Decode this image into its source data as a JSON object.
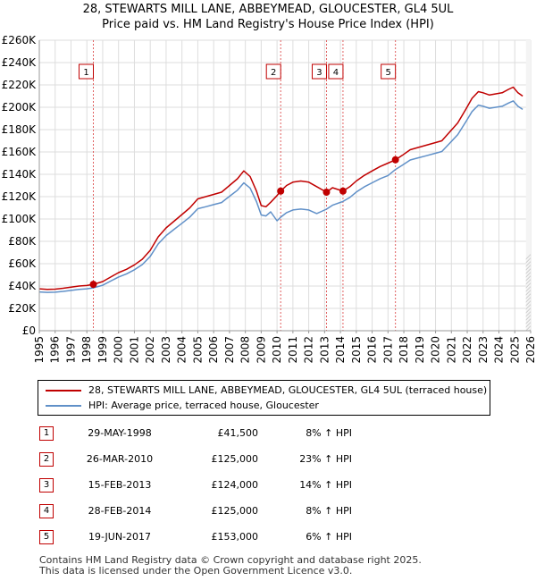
{
  "title_line1": "28, STEWARTS MILL LANE, ABBEYMEAD, GLOUCESTER, GL4 5UL",
  "title_line2": "Price paid vs. HM Land Registry's House Price Index (HPI)",
  "colors": {
    "property": "#c00000",
    "hpi": "#6090c8",
    "grid": "#dddddd",
    "marker_line": "#e06060"
  },
  "chart_data": {
    "type": "line",
    "xlim": [
      1995,
      2026
    ],
    "ylim": [
      0,
      260000
    ],
    "ytick_values": [
      0,
      20000,
      40000,
      60000,
      80000,
      100000,
      120000,
      140000,
      160000,
      180000,
      200000,
      220000,
      240000,
      260000
    ],
    "ytick_labels": [
      "£0",
      "£20K",
      "£40K",
      "£60K",
      "£80K",
      "£100K",
      "£120K",
      "£140K",
      "£160K",
      "£180K",
      "£200K",
      "£220K",
      "£240K",
      "£260K"
    ],
    "xtick_values": [
      1995,
      1996,
      1997,
      1998,
      1999,
      2000,
      2001,
      2002,
      2003,
      2004,
      2005,
      2006,
      2007,
      2008,
      2009,
      2010,
      2011,
      2012,
      2013,
      2014,
      2015,
      2016,
      2017,
      2018,
      2019,
      2020,
      2021,
      2022,
      2023,
      2024,
      2025,
      2026
    ],
    "xtick_labels": [
      "1995",
      "1996",
      "1997",
      "1998",
      "1999",
      "2000",
      "2001",
      "2002",
      "2003",
      "2004",
      "2005",
      "2006",
      "2007",
      "2008",
      "2009",
      "2010",
      "2011",
      "2012",
      "2013",
      "2014",
      "2015",
      "2016",
      "2017",
      "2018",
      "2019",
      "2020",
      "2021",
      "2022",
      "2023",
      "2024",
      "2025",
      "2026"
    ],
    "series": [
      {
        "name": "28, STEWARTS MILL LANE, ABBEYMEAD, GLOUCESTER, GL4 5UL (terraced house)",
        "x": [
          1995.0,
          1995.5,
          1996.0,
          1996.5,
          1997.0,
          1997.5,
          1998.0,
          1998.41,
          1999.0,
          1999.5,
          2000.0,
          2000.5,
          2001.0,
          2001.5,
          2002.0,
          2002.5,
          2003.0,
          2003.5,
          2004.0,
          2004.5,
          2005.0,
          2005.5,
          2006.0,
          2006.5,
          2007.0,
          2007.5,
          2007.9,
          2008.3,
          2008.7,
          2009.0,
          2009.3,
          2009.6,
          2010.0,
          2010.23,
          2010.6,
          2011.0,
          2011.5,
          2012.0,
          2012.5,
          2013.12,
          2013.5,
          2014.16,
          2014.6,
          2015.0,
          2015.5,
          2016.0,
          2016.5,
          2017.0,
          2017.47,
          2017.9,
          2018.4,
          2018.9,
          2019.4,
          2019.9,
          2020.4,
          2020.9,
          2021.4,
          2021.9,
          2022.3,
          2022.7,
          2023.0,
          2023.4,
          2023.8,
          2024.2,
          2024.6,
          2024.9,
          2025.2,
          2025.5
        ],
        "y": [
          37500,
          37000,
          37200,
          38000,
          39000,
          40000,
          40500,
          41500,
          44000,
          48000,
          52000,
          55000,
          59000,
          64000,
          72000,
          84000,
          92000,
          98000,
          104000,
          110000,
          118000,
          120000,
          122000,
          124000,
          130000,
          136000,
          143000,
          138000,
          125000,
          112000,
          111000,
          115000,
          121000,
          125000,
          130000,
          133000,
          134000,
          133000,
          129000,
          124000,
          128000,
          125000,
          129000,
          134000,
          139000,
          143000,
          147000,
          150000,
          153000,
          157000,
          162000,
          164000,
          166000,
          168000,
          170000,
          178000,
          186000,
          198000,
          208000,
          214000,
          213000,
          211000,
          212000,
          213000,
          216000,
          218000,
          213000,
          210000
        ]
      },
      {
        "name": "HPI: Average price, terraced house, Gloucester",
        "x": [
          1995.0,
          1995.5,
          1996.0,
          1996.5,
          1997.0,
          1997.5,
          1998.0,
          1998.41,
          1999.0,
          1999.5,
          2000.0,
          2000.5,
          2001.0,
          2001.5,
          2002.0,
          2002.5,
          2003.0,
          2003.5,
          2004.0,
          2004.5,
          2005.0,
          2005.5,
          2006.0,
          2006.5,
          2007.0,
          2007.5,
          2007.9,
          2008.3,
          2008.7,
          2009.0,
          2009.3,
          2009.6,
          2010.0,
          2010.23,
          2010.6,
          2011.0,
          2011.5,
          2012.0,
          2012.5,
          2013.12,
          2013.5,
          2014.16,
          2014.6,
          2015.0,
          2015.5,
          2016.0,
          2016.5,
          2017.0,
          2017.47,
          2017.9,
          2018.4,
          2018.9,
          2019.4,
          2019.9,
          2020.4,
          2020.9,
          2021.4,
          2021.9,
          2022.3,
          2022.7,
          2023.0,
          2023.4,
          2023.8,
          2024.2,
          2024.6,
          2024.9,
          2025.2,
          2025.5
        ],
        "y": [
          34700,
          34300,
          34500,
          35200,
          36100,
          37000,
          37500,
          38400,
          40700,
          44400,
          48100,
          50900,
          54600,
          59200,
          66600,
          77700,
          85100,
          90700,
          96200,
          101800,
          109200,
          111000,
          112900,
          114700,
          120300,
          125800,
          132300,
          127700,
          115600,
          103600,
          102700,
          106400,
          98400,
          101600,
          105700,
          108100,
          108900,
          108100,
          104900,
          108800,
          112300,
          115700,
          119400,
          124100,
          128700,
          132400,
          136100,
          138900,
          144300,
          148100,
          152800,
          154700,
          156600,
          158500,
          160400,
          167900,
          175500,
          186800,
          196200,
          201900,
          200900,
          199100,
          200000,
          200900,
          203800,
          205700,
          200900,
          198100
        ]
      }
    ],
    "sales": [
      {
        "label": "1",
        "x": 1998.41,
        "y": 41500
      },
      {
        "label": "2",
        "x": 2010.23,
        "y": 125000
      },
      {
        "label": "3",
        "x": 2013.12,
        "y": 124000
      },
      {
        "label": "4",
        "x": 2014.16,
        "y": 125000
      },
      {
        "label": "5",
        "x": 2017.47,
        "y": 153000
      }
    ]
  },
  "legend": {
    "property_label": "28, STEWARTS MILL LANE, ABBEYMEAD, GLOUCESTER, GL4 5UL (terraced house)",
    "hpi_label": "HPI: Average price, terraced house, Gloucester"
  },
  "transactions": [
    {
      "num": "1",
      "date": "29-MAY-1998",
      "price": "£41,500",
      "hpi": "8% ↑ HPI"
    },
    {
      "num": "2",
      "date": "26-MAR-2010",
      "price": "£125,000",
      "hpi": "23% ↑ HPI"
    },
    {
      "num": "3",
      "date": "15-FEB-2013",
      "price": "£124,000",
      "hpi": "14% ↑ HPI"
    },
    {
      "num": "4",
      "date": "28-FEB-2014",
      "price": "£125,000",
      "hpi": "8% ↑ HPI"
    },
    {
      "num": "5",
      "date": "19-JUN-2017",
      "price": "£153,000",
      "hpi": "6% ↑ HPI"
    }
  ],
  "footer": {
    "line1": "Contains HM Land Registry data © Crown copyright and database right 2025.",
    "line2": "This data is licensed under the Open Government Licence v3.0."
  }
}
